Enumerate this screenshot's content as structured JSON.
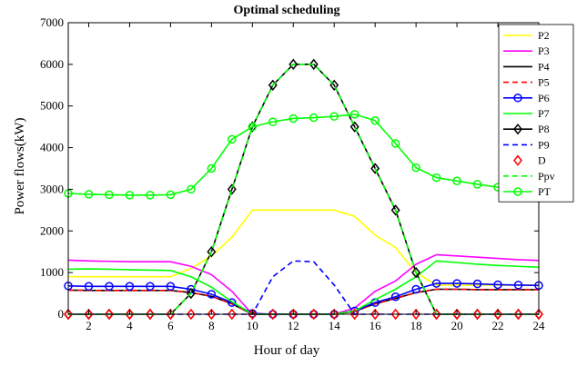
{
  "chart_data": {
    "type": "line",
    "title": "Optimal scheduling",
    "xlabel": "Hour of day",
    "ylabel": "Power flows(kW)",
    "xlim": [
      1,
      24
    ],
    "ylim": [
      0,
      7000
    ],
    "xticks": [
      2,
      4,
      6,
      8,
      10,
      12,
      14,
      16,
      18,
      20,
      22,
      24
    ],
    "yticks": [
      0,
      1000,
      2000,
      3000,
      4000,
      5000,
      6000,
      7000
    ],
    "grid": false,
    "legend": "top-right",
    "x": [
      1,
      2,
      3,
      4,
      5,
      6,
      7,
      8,
      9,
      10,
      11,
      12,
      13,
      14,
      15,
      16,
      17,
      18,
      19,
      20,
      21,
      22,
      23,
      24
    ],
    "series": [
      {
        "name": "P2",
        "color": "#ffff00",
        "dash": "solid",
        "marker": "none",
        "values": [
          900,
          900,
          900,
          900,
          900,
          900,
          1100,
          1400,
          1850,
          2500,
          2500,
          2500,
          2500,
          2500,
          2350,
          1900,
          1600,
          1000,
          700,
          700,
          700,
          700,
          700,
          700
        ]
      },
      {
        "name": "P3",
        "color": "#ff00ff",
        "dash": "solid",
        "marker": "none",
        "values": [
          1300,
          1280,
          1270,
          1260,
          1260,
          1260,
          1150,
          950,
          550,
          0,
          0,
          0,
          0,
          0,
          150,
          550,
          800,
          1200,
          1430,
          1400,
          1370,
          1340,
          1310,
          1290
        ]
      },
      {
        "name": "P4",
        "color": "#000000",
        "dash": "solid",
        "marker": "none",
        "values": [
          580,
          570,
          570,
          570,
          570,
          570,
          520,
          430,
          250,
          0,
          0,
          0,
          0,
          0,
          70,
          250,
          380,
          520,
          600,
          600,
          590,
          590,
          590,
          590
        ]
      },
      {
        "name": "P5",
        "color": "#ff0000",
        "dash": "dashed",
        "marker": "none",
        "values": [
          580,
          570,
          570,
          570,
          570,
          570,
          520,
          430,
          250,
          0,
          0,
          0,
          0,
          0,
          70,
          250,
          380,
          520,
          600,
          600,
          590,
          590,
          590,
          590
        ]
      },
      {
        "name": "P6",
        "color": "#0000ff",
        "dash": "solid",
        "marker": "circle",
        "values": [
          680,
          670,
          670,
          670,
          670,
          670,
          600,
          480,
          280,
          20,
          0,
          0,
          0,
          0,
          80,
          280,
          420,
          600,
          740,
          740,
          730,
          710,
          700,
          690
        ]
      },
      {
        "name": "P7",
        "color": "#00ff00",
        "dash": "solid",
        "marker": "none",
        "values": [
          1080,
          1090,
          1080,
          1070,
          1060,
          1050,
          900,
          650,
          300,
          0,
          0,
          0,
          0,
          0,
          80,
          350,
          600,
          900,
          1280,
          1240,
          1200,
          1170,
          1150,
          1130
        ]
      },
      {
        "name": "P8",
        "color": "#000000",
        "dash": "solid",
        "marker": "diamond",
        "values": [
          0,
          0,
          0,
          0,
          0,
          0,
          500,
          1500,
          3000,
          4500,
          5500,
          6000,
          6000,
          5500,
          4500,
          3500,
          2500,
          1000,
          0,
          0,
          0,
          0,
          0,
          0
        ]
      },
      {
        "name": "P9",
        "color": "#0000ff",
        "dash": "dashed",
        "marker": "none",
        "values": [
          0,
          0,
          0,
          0,
          0,
          0,
          0,
          0,
          0,
          0,
          900,
          1280,
          1260,
          700,
          0,
          0,
          0,
          0,
          0,
          0,
          0,
          0,
          0,
          0
        ]
      },
      {
        "name": "D",
        "color": "#ff0000",
        "dash": "none",
        "marker": "diamond",
        "values": [
          0,
          0,
          0,
          0,
          0,
          0,
          0,
          0,
          0,
          0,
          0,
          0,
          0,
          0,
          0,
          0,
          0,
          0,
          0,
          0,
          0,
          0,
          0,
          0
        ]
      },
      {
        "name": "Ppv",
        "color": "#00ff00",
        "dash": "dashed",
        "marker": "none",
        "values": [
          0,
          0,
          0,
          0,
          0,
          0,
          500,
          1500,
          3000,
          4500,
          5500,
          6000,
          6000,
          5500,
          4500,
          3500,
          2500,
          1000,
          0,
          0,
          0,
          0,
          0,
          0
        ]
      },
      {
        "name": "PT",
        "color": "#00ff00",
        "dash": "solid",
        "marker": "circle",
        "values": [
          2900,
          2880,
          2870,
          2860,
          2860,
          2870,
          3000,
          3500,
          4200,
          4500,
          4620,
          4700,
          4720,
          4750,
          4800,
          4650,
          4100,
          3520,
          3280,
          3200,
          3120,
          3050,
          2980,
          2950
        ]
      }
    ]
  }
}
